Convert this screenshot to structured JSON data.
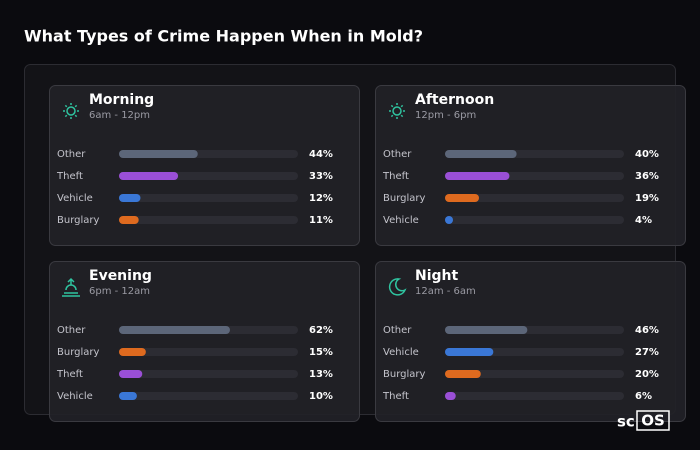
{
  "title": "What Types of Crime Happen When in Mold?",
  "logo": {
    "prefix": "sc",
    "boxed": "OS"
  },
  "chart_data": [
    {
      "type": "bar",
      "title": "Morning",
      "subtitle": "6am - 12pm",
      "xlim": [
        0,
        100
      ],
      "categories": [
        "Other",
        "Theft",
        "Vehicle",
        "Burglary"
      ],
      "values": [
        44,
        33,
        12,
        11
      ],
      "value_labels": [
        "44%",
        "33%",
        "12%",
        "11%"
      ],
      "colors": [
        "#5c6679",
        "#9a4fd6",
        "#3a77d6",
        "#de6a1f"
      ]
    },
    {
      "type": "bar",
      "title": "Afternoon",
      "subtitle": "12pm - 6pm",
      "xlim": [
        0,
        100
      ],
      "categories": [
        "Other",
        "Theft",
        "Burglary",
        "Vehicle"
      ],
      "values": [
        40,
        36,
        19,
        4
      ],
      "value_labels": [
        "40%",
        "36%",
        "19%",
        "4%"
      ],
      "colors": [
        "#5c6679",
        "#9a4fd6",
        "#de6a1f",
        "#3a77d6"
      ]
    },
    {
      "type": "bar",
      "title": "Evening",
      "subtitle": "6pm - 12am",
      "xlim": [
        0,
        100
      ],
      "categories": [
        "Other",
        "Burglary",
        "Theft",
        "Vehicle"
      ],
      "values": [
        62,
        15,
        13,
        10
      ],
      "value_labels": [
        "62%",
        "15%",
        "13%",
        "10%"
      ],
      "colors": [
        "#5c6679",
        "#de6a1f",
        "#9a4fd6",
        "#3a77d6"
      ]
    },
    {
      "type": "bar",
      "title": "Night",
      "subtitle": "12am - 6am",
      "xlim": [
        0,
        100
      ],
      "categories": [
        "Other",
        "Vehicle",
        "Burglary",
        "Theft"
      ],
      "values": [
        46,
        27,
        20,
        6
      ],
      "value_labels": [
        "46%",
        "27%",
        "20%",
        "6%"
      ],
      "colors": [
        "#5c6679",
        "#3a77d6",
        "#de6a1f",
        "#9a4fd6"
      ]
    }
  ]
}
